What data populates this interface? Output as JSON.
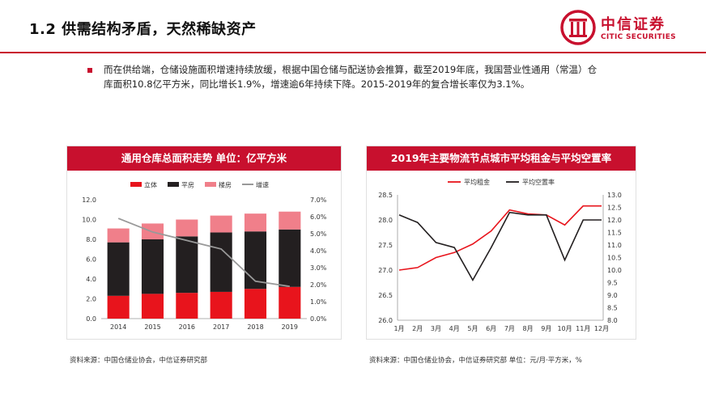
{
  "header": {
    "title": "1.2 供需结构矛盾，天然稀缺资产"
  },
  "logo": {
    "name": "中信证券",
    "english": "CITIC SECURITIES"
  },
  "bullet": {
    "text": "而在供给端，仓储设施面积增速持续放缓，根据中国仓储与配送协会推算，截至2019年底，我国营业性通用（常温）仓库面积10.8亿平方米，同比增长1.9%，增速逾6年持续下降。2015-2019年的复合增长率仅为3.1%。"
  },
  "left_panel": {
    "title": "通用仓库总面积走势  单位：亿平方米",
    "source": "资料来源：中国仓储业协会，中信证券研究部"
  },
  "right_panel": {
    "title": "2019年主要物流节点城市平均租金与平均空置率",
    "source": "资料来源：中国仓储业协会，中信证券研究部 单位：元/月·平方米，%"
  },
  "chart_data": [
    {
      "type": "bar",
      "stacked": true,
      "title": "通用仓库总面积走势  单位：亿平方米",
      "categories": [
        "2014",
        "2015",
        "2016",
        "2017",
        "2018",
        "2019"
      ],
      "series": [
        {
          "name": "立体",
          "color": "#e8141c",
          "values": [
            2.3,
            2.5,
            2.6,
            2.7,
            3.0,
            3.2
          ]
        },
        {
          "name": "平房",
          "color": "#231f20",
          "values": [
            5.4,
            5.5,
            5.7,
            6.0,
            5.8,
            5.8
          ]
        },
        {
          "name": "楼房",
          "color": "#f07f8a",
          "values": [
            1.4,
            1.6,
            1.7,
            1.7,
            1.8,
            1.8
          ]
        }
      ],
      "line_series": {
        "name": "增速",
        "color": "#999999",
        "axis": "right",
        "values": [
          5.9,
          5.1,
          4.6,
          4.1,
          2.2,
          1.9
        ]
      },
      "ylim": [
        0,
        12
      ],
      "yticks": [
        "0.0",
        "2.0",
        "4.0",
        "6.0",
        "8.0",
        "10.0",
        "12.0"
      ],
      "y2lim": [
        0,
        7
      ],
      "y2ticks": [
        "0.0%",
        "1.0%",
        "2.0%",
        "3.0%",
        "4.0%",
        "5.0%",
        "6.0%",
        "7.0%"
      ],
      "legend": "top"
    },
    {
      "type": "line",
      "title": "2019年主要物流节点城市平均租金与平均空置率",
      "categories": [
        "1月",
        "2月",
        "3月",
        "4月",
        "5月",
        "6月",
        "7月",
        "8月",
        "9月",
        "10月",
        "11月",
        "12月"
      ],
      "series": [
        {
          "name": "平均租金",
          "color": "#e8141c",
          "axis": "left",
          "values": [
            27.0,
            27.05,
            27.25,
            27.35,
            27.52,
            27.78,
            28.2,
            28.12,
            28.1,
            27.9,
            28.28,
            28.28
          ]
        },
        {
          "name": "平均空置率",
          "color": "#231f20",
          "axis": "right",
          "values": [
            12.2,
            11.9,
            11.1,
            10.9,
            9.6,
            10.9,
            12.3,
            12.2,
            12.2,
            10.4,
            12.0,
            12.0
          ]
        }
      ],
      "ylim": [
        26.0,
        28.5
      ],
      "yticks": [
        "26.0",
        "26.5",
        "27.0",
        "27.5",
        "28.0",
        "28.5"
      ],
      "y2lim": [
        8.0,
        13.0
      ],
      "y2ticks": [
        "8.0",
        "8.5",
        "9.0",
        "9.5",
        "10.0",
        "10.5",
        "11.0",
        "11.5",
        "12.0",
        "12.5",
        "13.0"
      ],
      "legend": "top"
    }
  ]
}
